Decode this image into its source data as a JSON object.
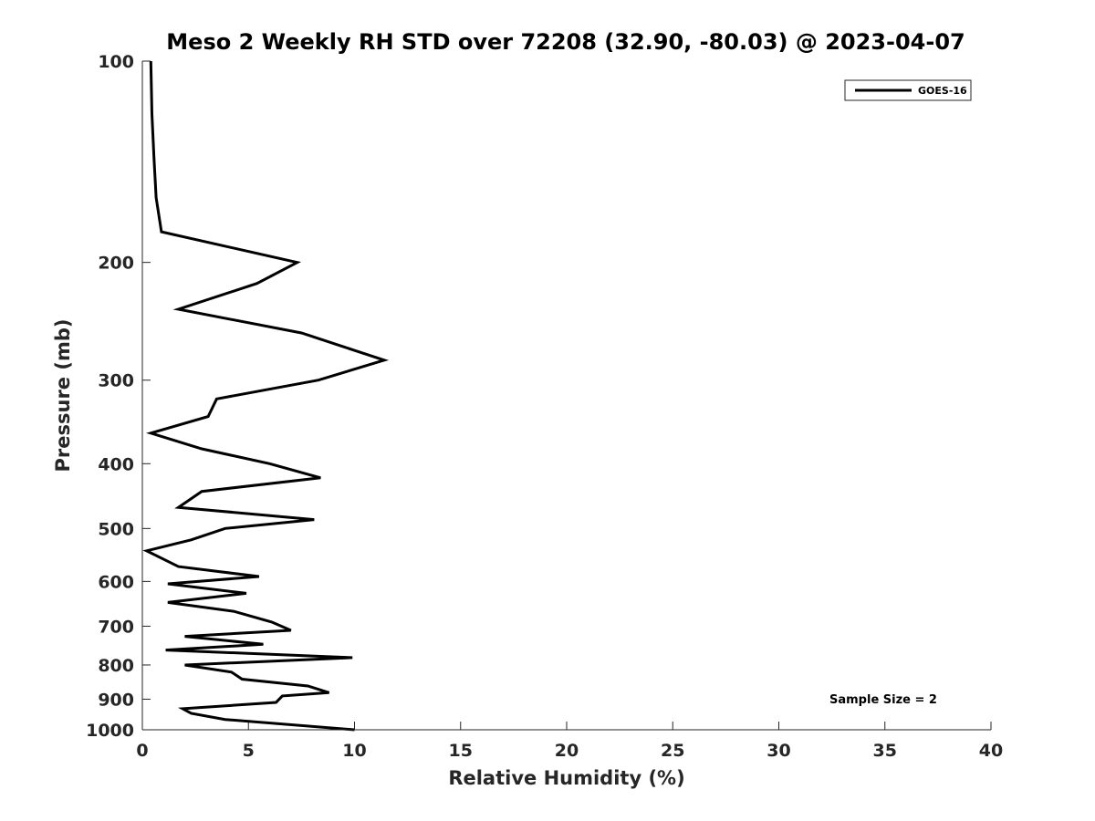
{
  "chart_data": {
    "type": "line",
    "title": "Meso 2 Weekly RH STD over 72208 (32.90, -80.03) @ 2023-04-07",
    "xlabel": "Relative Humidity (%)",
    "ylabel": "Pressure (mb)",
    "xlim": [
      0,
      40
    ],
    "ylim": [
      1000,
      100
    ],
    "y_scale": "log",
    "y_reversed": true,
    "x_ticks": [
      0,
      5,
      10,
      15,
      20,
      25,
      30,
      35,
      40
    ],
    "x_tick_labels": [
      "0",
      "5",
      "10",
      "15",
      "20",
      "25",
      "30",
      "35",
      "40"
    ],
    "y_ticks": [
      100,
      200,
      300,
      400,
      500,
      600,
      700,
      800,
      900,
      1000
    ],
    "y_tick_labels": [
      "100",
      "200",
      "300",
      "400",
      "500",
      "600",
      "700",
      "800",
      "900",
      "1000"
    ],
    "grid": false,
    "legend_position": "top-right",
    "series": [
      {
        "name": "GOES-16",
        "color": "#000000",
        "x": [
          0.4,
          0.45,
          0.55,
          0.65,
          0.9,
          7.3,
          5.4,
          1.7,
          7.5,
          11.4,
          8.3,
          3.5,
          3.1,
          0.4,
          2.8,
          6.0,
          8.4,
          2.8,
          1.7,
          8.1,
          3.9,
          2.3,
          0.2,
          1.7,
          5.5,
          1.2,
          4.9,
          1.2,
          4.3,
          6.1,
          7.0,
          2.0,
          5.7,
          1.1,
          9.9,
          2.0,
          4.2,
          4.7,
          7.8,
          8.8,
          6.6,
          6.3,
          1.9,
          2.3,
          3.9,
          10.0
        ],
        "y": [
          100,
          120,
          140,
          160,
          180,
          200,
          215,
          235,
          255,
          280,
          300,
          320,
          340,
          360,
          380,
          400,
          420,
          440,
          465,
          485,
          500,
          520,
          540,
          570,
          590,
          605,
          625,
          645,
          665,
          690,
          710,
          725,
          745,
          760,
          780,
          800,
          820,
          840,
          860,
          880,
          890,
          910,
          930,
          945,
          965,
          1000
        ]
      }
    ],
    "legend_label": "GOES-16",
    "annotation": "Sample Size = 2"
  }
}
